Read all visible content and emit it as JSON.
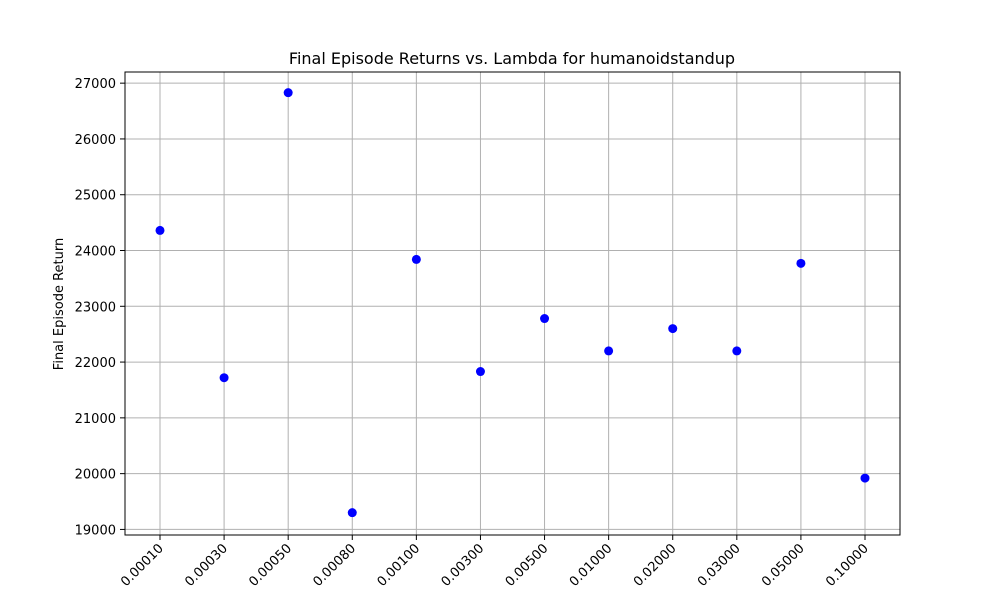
{
  "chart_data": {
    "type": "scatter",
    "title": "Final Episode Returns vs. Lambda for humanoidstandup",
    "xlabel": "",
    "ylabel": "Final Episode Return",
    "categories": [
      "0.00010",
      "0.00030",
      "0.00050",
      "0.00080",
      "0.00100",
      "0.00300",
      "0.00500",
      "0.01000",
      "0.02000",
      "0.03000",
      "0.05000",
      "0.10000"
    ],
    "values": [
      24360,
      21720,
      26830,
      19300,
      23840,
      21830,
      22780,
      22200,
      22600,
      22200,
      23770,
      19920
    ],
    "yticks": [
      19000,
      20000,
      21000,
      22000,
      23000,
      24000,
      25000,
      26000,
      27000
    ],
    "ylim": [
      18900,
      27200
    ],
    "grid": true,
    "marker_color": "#0000ff"
  }
}
